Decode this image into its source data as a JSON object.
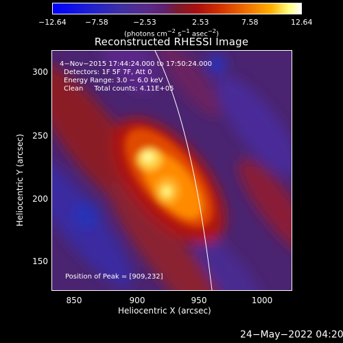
{
  "colorbar": {
    "ticks": [
      "−12.64",
      "−7.58",
      "−2.53",
      "2.53",
      "7.58",
      "12.64"
    ],
    "units_prefix": "(photons cm",
    "units_exp1": "−2",
    "units_mid": " s",
    "units_exp2": "−1",
    "units_mid2": " asec",
    "units_exp3": "−2",
    "units_suffix": ")"
  },
  "title": "Reconstructed RHESSI Image",
  "annotations": {
    "time": "4−Nov−2015 17:44:24.000 to 17:50:24.000",
    "detectors": "Detectors: 1F 5F 7F, Att 0",
    "energy": "Energy Range: 3.0 − 6.0 keV",
    "clean": "Clean     Total counts: 4.11E+05",
    "peak": "Position of Peak = [909,232]"
  },
  "axes": {
    "xlabel": "Heliocentric X (arcsec)",
    "ylabel": "Heliocentric Y (arcsec)",
    "xticks": [
      "850",
      "900",
      "950",
      "1000"
    ],
    "yticks": [
      "300",
      "250",
      "200",
      "150"
    ]
  },
  "footer_timestamp": "24−May−2022 04:20"
}
